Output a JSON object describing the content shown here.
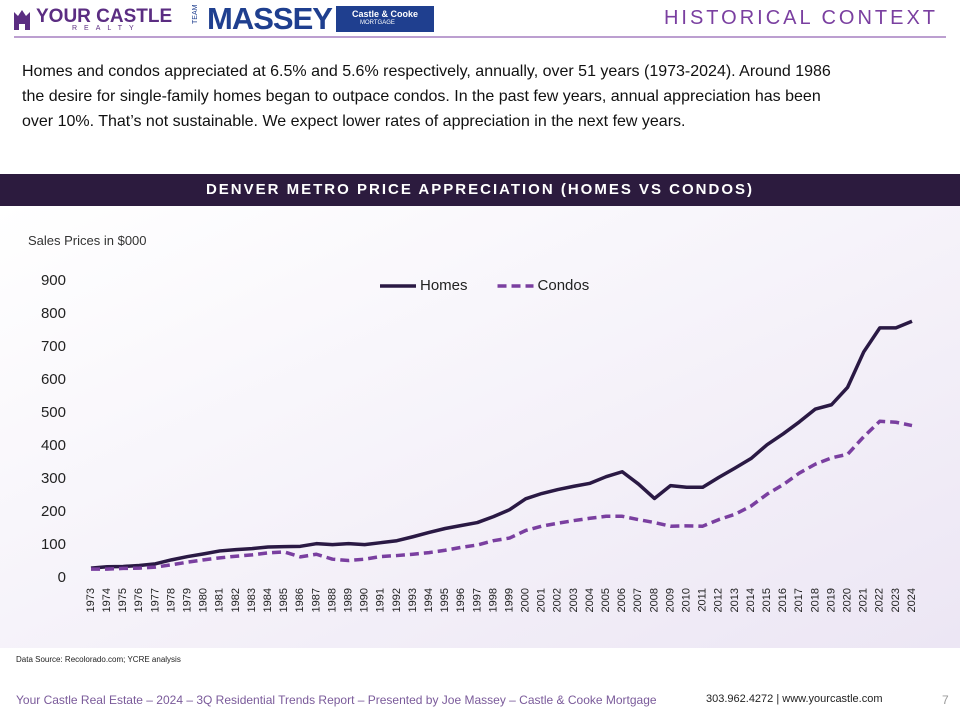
{
  "header": {
    "logo_main": "YOUR CASTLE",
    "logo_sub": "REALTY",
    "team": "TEAM",
    "massey": "MASSEY",
    "partner": "Castle & Cooke",
    "partner_sub": "MORTGAGE",
    "title": "HISTORICAL CONTEXT"
  },
  "intro": [
    "Homes and condos appreciated at 6.5% and 5.6% respectively, annually, over 51 years (1973-2024). Around 1986",
    "the desire for single-family homes began to outpace condos. In the past few years, annual appreciation has been",
    "over 10%. That’s not sustainable.  We expect lower rates of appreciation in the next few years."
  ],
  "chart_data": {
    "type": "line",
    "title": "DENVER METRO PRICE APPRECIATION (HOMES VS CONDOS)",
    "y_label": "Sales Prices in $000",
    "categories": [
      "1973",
      "1974",
      "1975",
      "1976",
      "1977",
      "1978",
      "1979",
      "1980",
      "1981",
      "1982",
      "1983",
      "1984",
      "1985",
      "1986",
      "1987",
      "1988",
      "1989",
      "1990",
      "1991",
      "1992",
      "1993",
      "1994",
      "1995",
      "1996",
      "1997",
      "1998",
      "1999",
      "2000",
      "2001",
      "2002",
      "2003",
      "2004",
      "2005",
      "2006",
      "2007",
      "2008",
      "2009",
      "2010",
      "2011",
      "2012",
      "2013",
      "2014",
      "2015",
      "2016",
      "2017",
      "2018",
      "2019",
      "2020",
      "2021",
      "2022",
      "2023",
      "2024"
    ],
    "series": [
      {
        "name": "Homes",
        "color": "#2a1944",
        "dash": false,
        "values": [
          30,
          34,
          35,
          38,
          43,
          55,
          65,
          73,
          82,
          86,
          89,
          94,
          95,
          96,
          104,
          101,
          104,
          101,
          107,
          113,
          125,
          138,
          150,
          159,
          168,
          186,
          207,
          240,
          256,
          268,
          278,
          287,
          307,
          322,
          285,
          241,
          280,
          275,
          275,
          305,
          333,
          362,
          404,
          437,
          473,
          512,
          525,
          578,
          685,
          758,
          758,
          778
        ]
      },
      {
        "name": "Condos",
        "color": "#7a3fa0",
        "dash": true,
        "values": [
          27,
          27,
          29,
          30,
          33,
          40,
          48,
          55,
          61,
          66,
          70,
          76,
          79,
          64,
          72,
          57,
          53,
          57,
          65,
          68,
          72,
          77,
          84,
          93,
          100,
          113,
          121,
          144,
          157,
          166,
          174,
          181,
          187,
          187,
          177,
          168,
          157,
          158,
          157,
          177,
          193,
          218,
          254,
          283,
          318,
          345,
          364,
          375,
          428,
          475,
          472,
          462
        ]
      }
    ],
    "ylim": [
      0,
      900
    ],
    "yticks": [
      0,
      100,
      200,
      300,
      400,
      500,
      600,
      700,
      800,
      900
    ],
    "grid": false,
    "legend": "top"
  },
  "source": "Data Source: Recolorado.com; YCRE analysis",
  "footer": {
    "text": "Your Castle Real Estate – 2024 – 3Q Residential Trends Report – Presented by Joe Massey – Castle & Cooke Mortgage",
    "contact": "303.962.4272 | www.yourcastle.com",
    "page": "7"
  }
}
